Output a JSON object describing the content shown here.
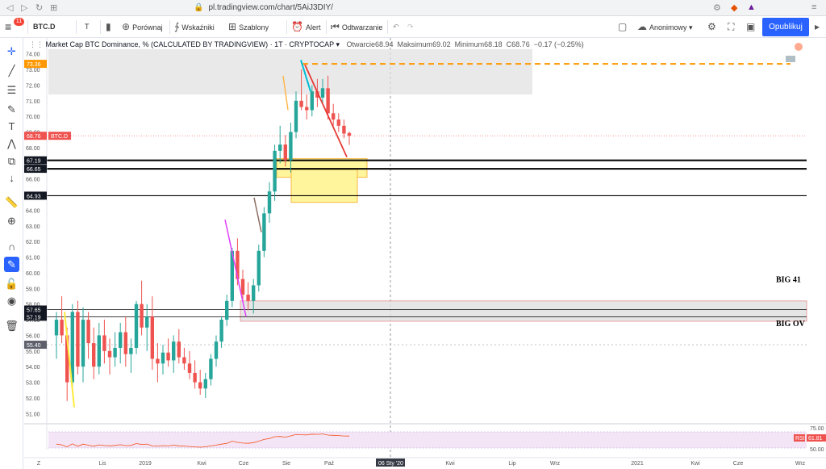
{
  "browser": {
    "url": "pl.tradingview.com/chart/5AiJ3DIY/",
    "lock_icon": "lock-icon"
  },
  "toolbar": {
    "menu_badge": "11",
    "symbol": "BTC.D",
    "interval": "T",
    "compare": "Porównaj",
    "indicators": "Wskaźniki",
    "templates": "Szablony",
    "alert": "Alert",
    "replay": "Odtwarzanie",
    "layout_name": "Anonimowy",
    "publish": "Opublikuj"
  },
  "legend": {
    "title": "Market Cap BTC Dominance, % (CALCULATED BY TRADINGVIEW) · 1T · CRYPTOCAP",
    "open_label": "Otwarcie",
    "open": "68.94",
    "high_label": "Maksimum",
    "high": "69.02",
    "low_label": "Minimum",
    "low": "68.18",
    "close_label": "C",
    "close": "68.76",
    "change": "−0.17 (−0.25%)"
  },
  "colors": {
    "up": "#26a69a",
    "down": "#ef5350",
    "accent": "#2962ff",
    "orange": "#ff9800",
    "yellow_zone": "#fff59d",
    "rsi_fill": "#f3e5f5"
  },
  "chart_data": {
    "type": "candlestick",
    "title": "Market Cap BTC Dominance, % (CALCULATED BY TRADINGVIEW)",
    "interval": "1T",
    "ylim": [
      50.5,
      74.5
    ],
    "y_ticks": [
      "74.00",
      "73.00",
      "72.00",
      "71.00",
      "70.00",
      "69.00",
      "68.00",
      "67.00",
      "66.00",
      "65.00",
      "64.00",
      "63.00",
      "62.00",
      "61.00",
      "60.00",
      "59.00",
      "58.00",
      "57.00",
      "56.00",
      "55.00",
      "54.00",
      "53.00",
      "52.00",
      "51.00"
    ],
    "x_labels": [
      "Z",
      "Lis",
      "2019",
      "Kwi",
      "Cze",
      "Sie",
      "Paź",
      "06 Sty '20",
      "Kwi",
      "Lip",
      "Wrz",
      "2021",
      "Kwi",
      "Cze",
      "Wrz"
    ],
    "price_tags": [
      {
        "text": "73.36",
        "kind": "orange"
      },
      {
        "text": "68.76",
        "kind": "red",
        "symbol": "BTC.D"
      },
      {
        "text": "67.19",
        "kind": "black"
      },
      {
        "text": "66.65",
        "kind": "black"
      },
      {
        "text": "64.93",
        "kind": "black"
      },
      {
        "text": "57.65",
        "kind": "black"
      },
      {
        "text": "57.19",
        "kind": "black"
      },
      {
        "text": "55.40",
        "kind": "gray"
      }
    ],
    "candles": [
      {
        "o": 56.0,
        "h": 57.5,
        "l": 54.5,
        "c": 57.0
      },
      {
        "o": 57.0,
        "h": 58.5,
        "l": 55.5,
        "c": 56.0
      },
      {
        "o": 56.0,
        "h": 56.5,
        "l": 51.8,
        "c": 53.0
      },
      {
        "o": 53.0,
        "h": 58.0,
        "l": 52.5,
        "c": 57.5
      },
      {
        "o": 57.5,
        "h": 58.2,
        "l": 53.5,
        "c": 54.0
      },
      {
        "o": 54.0,
        "h": 57.8,
        "l": 53.0,
        "c": 57.0
      },
      {
        "o": 57.0,
        "h": 57.5,
        "l": 54.5,
        "c": 55.5
      },
      {
        "o": 55.5,
        "h": 56.5,
        "l": 53.2,
        "c": 54.0
      },
      {
        "o": 54.0,
        "h": 56.8,
        "l": 53.5,
        "c": 56.0
      },
      {
        "o": 56.0,
        "h": 57.0,
        "l": 54.2,
        "c": 55.0
      },
      {
        "o": 55.0,
        "h": 55.8,
        "l": 53.5,
        "c": 54.6
      },
      {
        "o": 54.6,
        "h": 56.2,
        "l": 54.0,
        "c": 55.2
      },
      {
        "o": 55.2,
        "h": 56.8,
        "l": 54.2,
        "c": 56.2
      },
      {
        "o": 56.2,
        "h": 57.2,
        "l": 54.0,
        "c": 54.8
      },
      {
        "o": 54.8,
        "h": 55.8,
        "l": 53.6,
        "c": 55.2
      },
      {
        "o": 55.2,
        "h": 58.2,
        "l": 54.8,
        "c": 58.0
      },
      {
        "o": 58.0,
        "h": 59.5,
        "l": 56.0,
        "c": 56.5
      },
      {
        "o": 56.5,
        "h": 58.0,
        "l": 55.0,
        "c": 57.2
      },
      {
        "o": 57.2,
        "h": 58.5,
        "l": 53.8,
        "c": 54.5
      },
      {
        "o": 54.5,
        "h": 55.5,
        "l": 53.0,
        "c": 54.2
      },
      {
        "o": 54.2,
        "h": 55.4,
        "l": 53.5,
        "c": 54.9
      },
      {
        "o": 54.9,
        "h": 55.8,
        "l": 54.0,
        "c": 54.4
      },
      {
        "o": 54.4,
        "h": 56.0,
        "l": 53.6,
        "c": 55.6
      },
      {
        "o": 55.6,
        "h": 56.4,
        "l": 54.2,
        "c": 54.6
      },
      {
        "o": 54.6,
        "h": 55.2,
        "l": 53.8,
        "c": 54.2
      },
      {
        "o": 54.2,
        "h": 55.0,
        "l": 53.2,
        "c": 53.6
      },
      {
        "o": 53.6,
        "h": 54.4,
        "l": 52.6,
        "c": 53.0
      },
      {
        "o": 53.0,
        "h": 53.8,
        "l": 52.2,
        "c": 52.6
      },
      {
        "o": 52.6,
        "h": 53.6,
        "l": 52.0,
        "c": 53.2
      },
      {
        "o": 53.2,
        "h": 54.8,
        "l": 52.8,
        "c": 54.5
      },
      {
        "o": 54.5,
        "h": 56.0,
        "l": 54.0,
        "c": 55.6
      },
      {
        "o": 55.6,
        "h": 57.2,
        "l": 55.2,
        "c": 57.0
      },
      {
        "o": 57.0,
        "h": 58.6,
        "l": 56.6,
        "c": 58.2
      },
      {
        "o": 58.2,
        "h": 61.6,
        "l": 57.8,
        "c": 61.4
      },
      {
        "o": 61.4,
        "h": 62.2,
        "l": 59.2,
        "c": 59.6
      },
      {
        "o": 59.6,
        "h": 60.2,
        "l": 58.2,
        "c": 58.6
      },
      {
        "o": 58.6,
        "h": 59.4,
        "l": 57.6,
        "c": 58.2
      },
      {
        "o": 58.2,
        "h": 59.6,
        "l": 57.4,
        "c": 59.2
      },
      {
        "o": 59.2,
        "h": 61.8,
        "l": 58.8,
        "c": 61.4
      },
      {
        "o": 61.4,
        "h": 64.2,
        "l": 61.0,
        "c": 63.8
      },
      {
        "o": 63.8,
        "h": 65.8,
        "l": 63.2,
        "c": 65.2
      },
      {
        "o": 65.2,
        "h": 68.2,
        "l": 64.6,
        "c": 67.8
      },
      {
        "o": 67.8,
        "h": 69.4,
        "l": 67.0,
        "c": 68.2
      },
      {
        "o": 68.2,
        "h": 68.8,
        "l": 66.8,
        "c": 67.2
      },
      {
        "o": 67.2,
        "h": 69.6,
        "l": 66.4,
        "c": 69.0
      },
      {
        "o": 69.0,
        "h": 71.6,
        "l": 68.6,
        "c": 71.0
      },
      {
        "o": 71.0,
        "h": 73.0,
        "l": 70.4,
        "c": 70.6
      },
      {
        "o": 70.6,
        "h": 71.4,
        "l": 69.8,
        "c": 70.4
      },
      {
        "o": 70.4,
        "h": 72.0,
        "l": 70.0,
        "c": 71.6
      },
      {
        "o": 71.6,
        "h": 72.4,
        "l": 70.6,
        "c": 71.2
      },
      {
        "o": 71.2,
        "h": 72.4,
        "l": 70.8,
        "c": 71.8
      },
      {
        "o": 71.8,
        "h": 72.6,
        "l": 69.8,
        "c": 70.2
      },
      {
        "o": 70.2,
        "h": 70.8,
        "l": 69.4,
        "c": 69.8
      },
      {
        "o": 69.8,
        "h": 70.2,
        "l": 69.0,
        "c": 69.4
      },
      {
        "o": 69.4,
        "h": 69.8,
        "l": 68.6,
        "c": 68.9
      },
      {
        "o": 68.94,
        "h": 69.02,
        "l": 68.18,
        "c": 68.76
      }
    ],
    "rsi": {
      "label": "RSI",
      "value": "61.81",
      "levels": [
        "75.00",
        "50.00"
      ]
    },
    "annotations": [
      "BIG 41",
      "BIG OV"
    ]
  }
}
